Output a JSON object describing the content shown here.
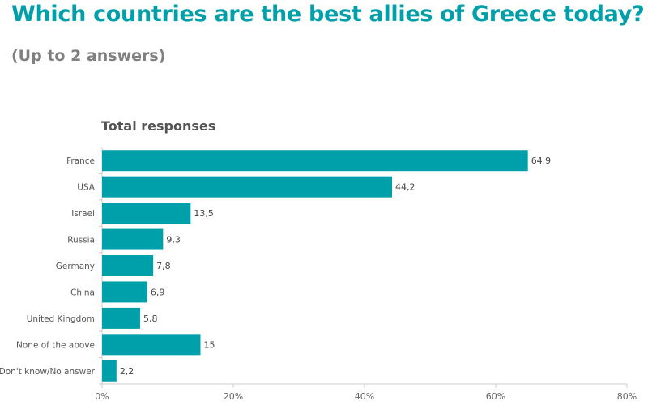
{
  "header": {
    "title": "Which countries are the best allies of Greece today?",
    "subtitle": "(Up to 2 answers)"
  },
  "colors": {
    "title": "#00a0ab",
    "bar": "#00a0ab",
    "subtitle": "#808080",
    "grid": "#cccccc"
  },
  "chart_data": {
    "type": "bar",
    "orientation": "horizontal",
    "title": "Total responses",
    "categories": [
      "France",
      "USA",
      "Israel",
      "Russia",
      "Germany",
      "China",
      "United Kingdom",
      "None of the above",
      "Don't know/No answer"
    ],
    "values": [
      64.9,
      44.2,
      13.5,
      9.3,
      7.8,
      6.9,
      5.8,
      15,
      2.2
    ],
    "value_labels": [
      "64,9",
      "44,2",
      "13,5",
      "9,3",
      "7,8",
      "6,9",
      "5,8",
      "15",
      "2,2"
    ],
    "xlim": [
      0,
      80
    ],
    "xticks": [
      0,
      20,
      40,
      60,
      80
    ],
    "xtick_labels": [
      "0%",
      "20%",
      "40%",
      "60%",
      "80%"
    ],
    "xlabel": "",
    "ylabel": "",
    "grid": false,
    "legend": "none"
  }
}
